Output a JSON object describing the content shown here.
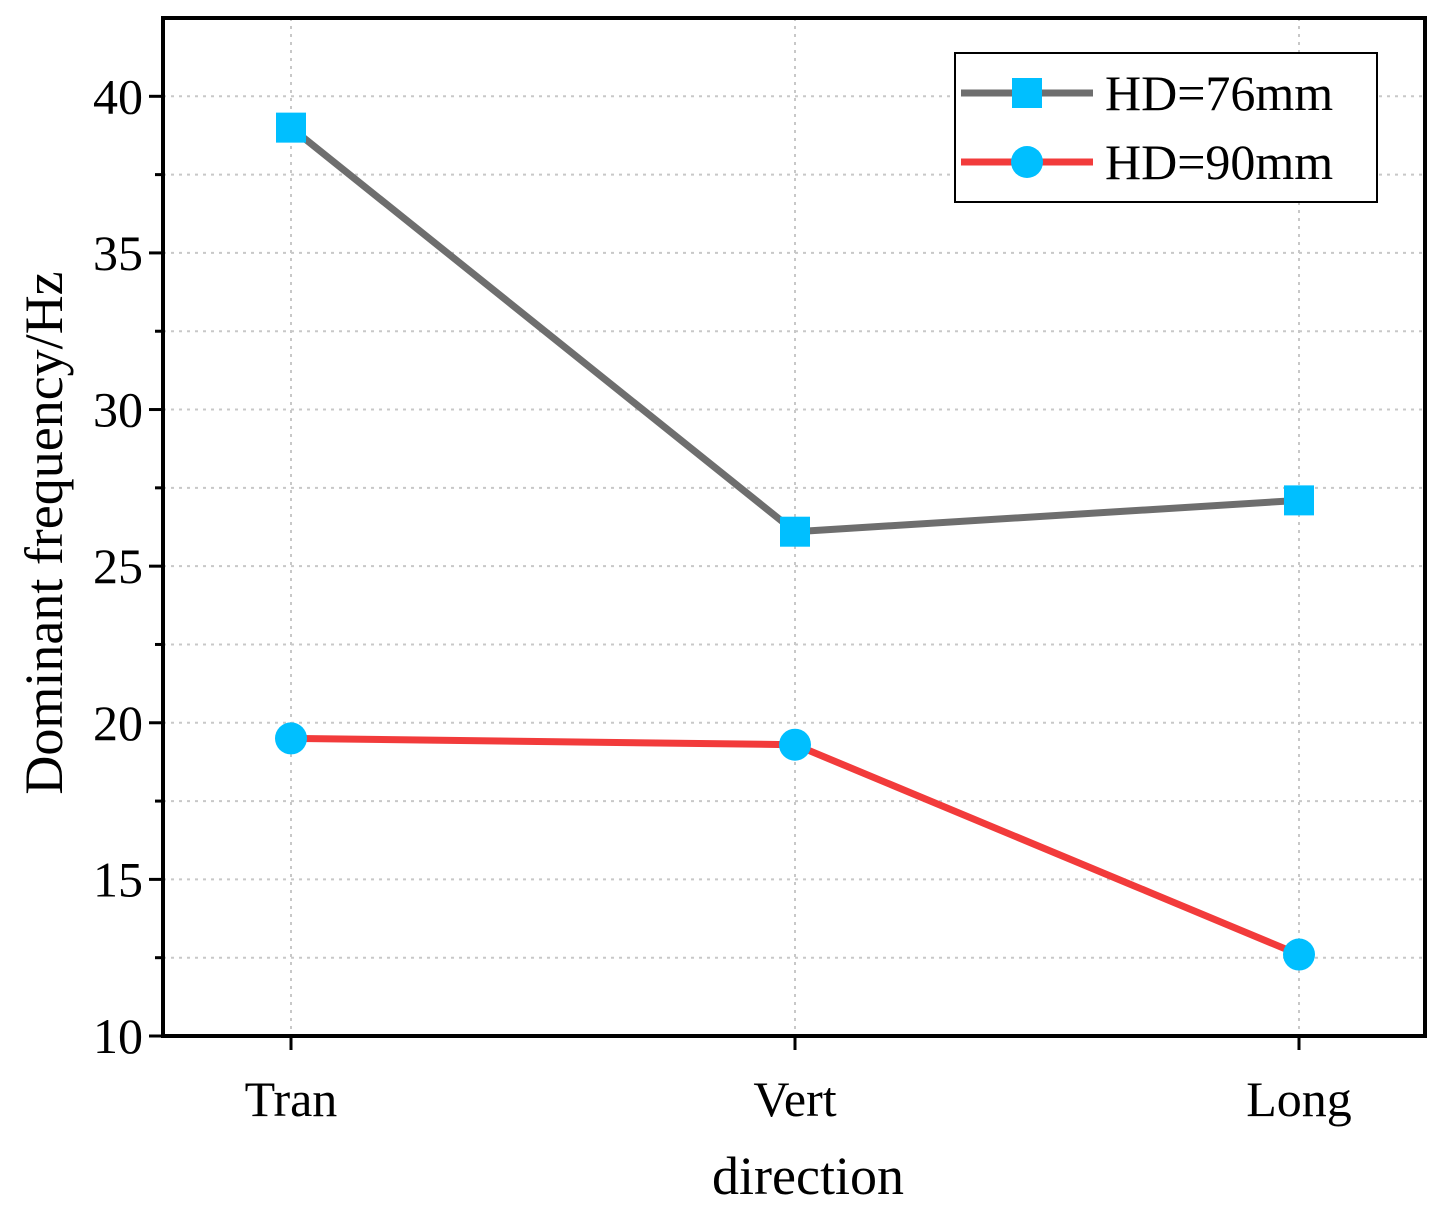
{
  "chart_data": {
    "type": "line",
    "title": "",
    "xlabel": "direction",
    "ylabel": "Dominant frequency/Hz",
    "categories": [
      "Tran",
      "Vert",
      "Long"
    ],
    "ylim": [
      10,
      42.5
    ],
    "yticks": [
      10,
      15,
      20,
      25,
      30,
      35,
      40
    ],
    "grid": true,
    "legend_position": "top-right",
    "series": [
      {
        "name": "HD=76mm",
        "values": [
          39.0,
          26.1,
          27.1
        ],
        "line_color": "#6e6e6e",
        "marker": "square",
        "marker_color": "#00bfff"
      },
      {
        "name": "HD=90mm",
        "values": [
          19.5,
          19.3,
          12.6
        ],
        "line_color": "#f23b3b",
        "marker": "circle",
        "marker_color": "#00bfff"
      }
    ]
  }
}
